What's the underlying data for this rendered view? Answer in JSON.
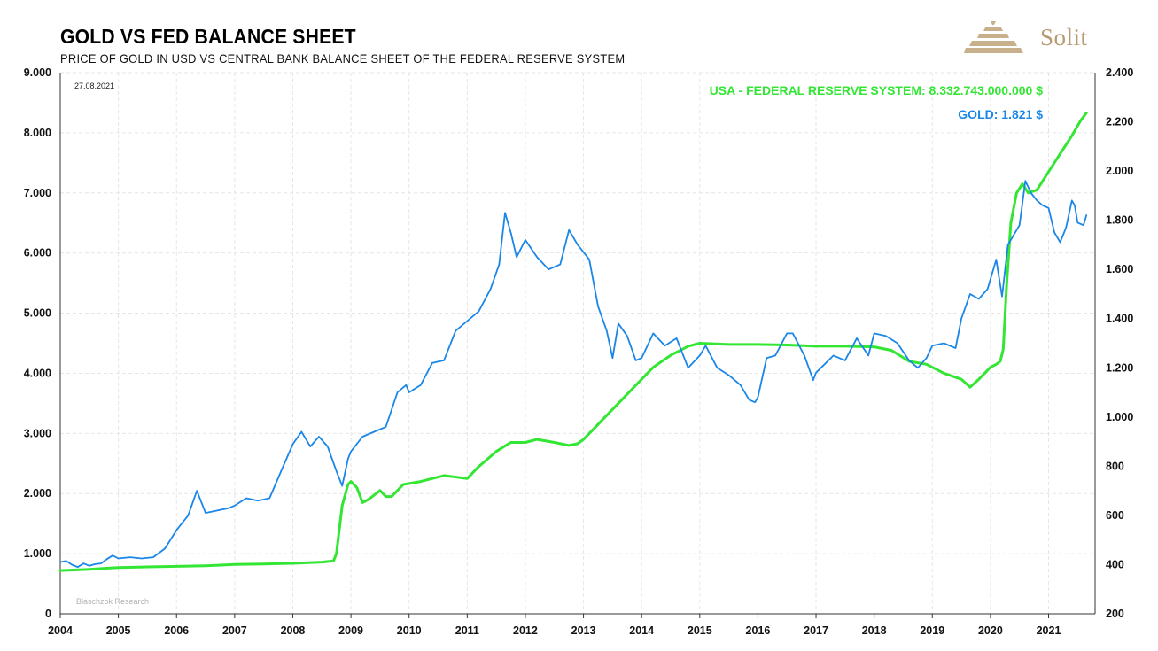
{
  "header": {
    "title": "GOLD VS FED BALANCE SHEET",
    "subtitle": "PRICE OF GOLD IN USD VS CENTRAL BANK BALANCE SHEET OF THE FEDERAL RESERVE SYSTEM",
    "logo_text": "Solit"
  },
  "chart_data": {
    "type": "line",
    "date_label": "27.08.2021",
    "credit": "Blaschzok Research",
    "x_range": [
      2004.0,
      2021.8
    ],
    "x_ticks": [
      "2004",
      "2005",
      "2006",
      "2007",
      "2008",
      "2009",
      "2010",
      "2011",
      "2012",
      "2013",
      "2014",
      "2015",
      "2016",
      "2017",
      "2018",
      "2019",
      "2020",
      "2021"
    ],
    "left_axis": {
      "series": "USA - FEDERAL RESERVE SYSTEM",
      "ylim": [
        0,
        9000
      ],
      "tick_labels": [
        "0",
        "1.000",
        "2.000",
        "3.000",
        "4.000",
        "5.000",
        "6.000",
        "7.000",
        "8.000",
        "9.000"
      ]
    },
    "right_axis": {
      "series": "GOLD",
      "ylim": [
        200,
        2400
      ],
      "tick_labels": [
        "200",
        "400",
        "600",
        "800",
        "1.000",
        "1.200",
        "1.400",
        "1.600",
        "1.800",
        "2.000",
        "2.200",
        "2.400"
      ]
    },
    "series": [
      {
        "name": "USA - FEDERAL RESERVE SYSTEM",
        "legend": "USA - FEDERAL RESERVE SYSTEM: 8.332.743.000.000 $",
        "axis": "left",
        "color": "#33e633",
        "unit": "billion USD",
        "points": [
          [
            2004.0,
            720
          ],
          [
            2004.5,
            740
          ],
          [
            2005.0,
            770
          ],
          [
            2005.5,
            780
          ],
          [
            2006.0,
            790
          ],
          [
            2006.5,
            800
          ],
          [
            2007.0,
            820
          ],
          [
            2007.5,
            830
          ],
          [
            2008.0,
            840
          ],
          [
            2008.5,
            860
          ],
          [
            2008.7,
            880
          ],
          [
            2008.75,
            1000
          ],
          [
            2008.85,
            1800
          ],
          [
            2008.95,
            2150
          ],
          [
            2009.0,
            2200
          ],
          [
            2009.1,
            2100
          ],
          [
            2009.2,
            1850
          ],
          [
            2009.3,
            1900
          ],
          [
            2009.5,
            2050
          ],
          [
            2009.6,
            1950
          ],
          [
            2009.7,
            1950
          ],
          [
            2009.9,
            2150
          ],
          [
            2010.2,
            2200
          ],
          [
            2010.6,
            2300
          ],
          [
            2011.0,
            2250
          ],
          [
            2011.2,
            2450
          ],
          [
            2011.5,
            2700
          ],
          [
            2011.75,
            2850
          ],
          [
            2012.0,
            2850
          ],
          [
            2012.2,
            2900
          ],
          [
            2012.5,
            2850
          ],
          [
            2012.75,
            2800
          ],
          [
            2012.9,
            2830
          ],
          [
            2013.0,
            2900
          ],
          [
            2013.3,
            3200
          ],
          [
            2013.6,
            3500
          ],
          [
            2013.9,
            3800
          ],
          [
            2014.2,
            4100
          ],
          [
            2014.5,
            4300
          ],
          [
            2014.8,
            4450
          ],
          [
            2015.0,
            4500
          ],
          [
            2015.5,
            4480
          ],
          [
            2016.0,
            4480
          ],
          [
            2016.5,
            4470
          ],
          [
            2017.0,
            4450
          ],
          [
            2017.5,
            4450
          ],
          [
            2018.0,
            4440
          ],
          [
            2018.3,
            4380
          ],
          [
            2018.6,
            4200
          ],
          [
            2018.9,
            4150
          ],
          [
            2019.2,
            4000
          ],
          [
            2019.5,
            3900
          ],
          [
            2019.65,
            3770
          ],
          [
            2019.8,
            3900
          ],
          [
            2020.0,
            4100
          ],
          [
            2020.1,
            4150
          ],
          [
            2020.17,
            4200
          ],
          [
            2020.22,
            4400
          ],
          [
            2020.28,
            5500
          ],
          [
            2020.35,
            6500
          ],
          [
            2020.45,
            7000
          ],
          [
            2020.55,
            7150
          ],
          [
            2020.65,
            7000
          ],
          [
            2020.8,
            7050
          ],
          [
            2021.0,
            7350
          ],
          [
            2021.2,
            7650
          ],
          [
            2021.4,
            7950
          ],
          [
            2021.55,
            8200
          ],
          [
            2021.65,
            8330
          ]
        ]
      },
      {
        "name": "GOLD",
        "legend": "GOLD: 1.821 $",
        "axis": "right",
        "color": "#1a86e8",
        "unit": "USD",
        "points": [
          [
            2004.0,
            410
          ],
          [
            2004.1,
            415
          ],
          [
            2004.2,
            400
          ],
          [
            2004.3,
            390
          ],
          [
            2004.4,
            405
          ],
          [
            2004.5,
            395
          ],
          [
            2004.6,
            402
          ],
          [
            2004.7,
            405
          ],
          [
            2004.8,
            422
          ],
          [
            2004.9,
            437
          ],
          [
            2005.0,
            425
          ],
          [
            2005.2,
            430
          ],
          [
            2005.4,
            425
          ],
          [
            2005.6,
            430
          ],
          [
            2005.8,
            465
          ],
          [
            2006.0,
            540
          ],
          [
            2006.2,
            600
          ],
          [
            2006.35,
            700
          ],
          [
            2006.5,
            610
          ],
          [
            2006.7,
            620
          ],
          [
            2006.9,
            630
          ],
          [
            2007.0,
            640
          ],
          [
            2007.2,
            670
          ],
          [
            2007.4,
            660
          ],
          [
            2007.6,
            670
          ],
          [
            2007.8,
            780
          ],
          [
            2008.0,
            890
          ],
          [
            2008.15,
            940
          ],
          [
            2008.3,
            880
          ],
          [
            2008.45,
            920
          ],
          [
            2008.6,
            880
          ],
          [
            2008.75,
            780
          ],
          [
            2008.85,
            720
          ],
          [
            2008.95,
            830
          ],
          [
            2009.0,
            860
          ],
          [
            2009.2,
            920
          ],
          [
            2009.4,
            940
          ],
          [
            2009.6,
            960
          ],
          [
            2009.8,
            1100
          ],
          [
            2009.95,
            1130
          ],
          [
            2010.0,
            1100
          ],
          [
            2010.2,
            1130
          ],
          [
            2010.4,
            1220
          ],
          [
            2010.6,
            1230
          ],
          [
            2010.8,
            1350
          ],
          [
            2011.0,
            1390
          ],
          [
            2011.2,
            1430
          ],
          [
            2011.4,
            1520
          ],
          [
            2011.55,
            1620
          ],
          [
            2011.65,
            1830
          ],
          [
            2011.75,
            1750
          ],
          [
            2011.85,
            1650
          ],
          [
            2012.0,
            1720
          ],
          [
            2012.2,
            1650
          ],
          [
            2012.4,
            1600
          ],
          [
            2012.6,
            1620
          ],
          [
            2012.75,
            1760
          ],
          [
            2012.9,
            1700
          ],
          [
            2013.0,
            1670
          ],
          [
            2013.1,
            1640
          ],
          [
            2013.25,
            1450
          ],
          [
            2013.4,
            1350
          ],
          [
            2013.5,
            1240
          ],
          [
            2013.6,
            1380
          ],
          [
            2013.75,
            1330
          ],
          [
            2013.9,
            1230
          ],
          [
            2014.0,
            1240
          ],
          [
            2014.2,
            1340
          ],
          [
            2014.4,
            1290
          ],
          [
            2014.6,
            1320
          ],
          [
            2014.8,
            1200
          ],
          [
            2015.0,
            1250
          ],
          [
            2015.1,
            1290
          ],
          [
            2015.3,
            1200
          ],
          [
            2015.5,
            1170
          ],
          [
            2015.7,
            1130
          ],
          [
            2015.85,
            1070
          ],
          [
            2015.95,
            1060
          ],
          [
            2016.0,
            1080
          ],
          [
            2016.15,
            1240
          ],
          [
            2016.3,
            1250
          ],
          [
            2016.5,
            1340
          ],
          [
            2016.6,
            1340
          ],
          [
            2016.8,
            1250
          ],
          [
            2016.95,
            1150
          ],
          [
            2017.0,
            1180
          ],
          [
            2017.3,
            1250
          ],
          [
            2017.5,
            1230
          ],
          [
            2017.7,
            1320
          ],
          [
            2017.9,
            1250
          ],
          [
            2018.0,
            1340
          ],
          [
            2018.2,
            1330
          ],
          [
            2018.4,
            1300
          ],
          [
            2018.6,
            1230
          ],
          [
            2018.75,
            1200
          ],
          [
            2018.9,
            1240
          ],
          [
            2019.0,
            1290
          ],
          [
            2019.2,
            1300
          ],
          [
            2019.4,
            1280
          ],
          [
            2019.5,
            1400
          ],
          [
            2019.65,
            1500
          ],
          [
            2019.8,
            1480
          ],
          [
            2019.95,
            1520
          ],
          [
            2020.0,
            1560
          ],
          [
            2020.1,
            1640
          ],
          [
            2020.2,
            1490
          ],
          [
            2020.3,
            1700
          ],
          [
            2020.5,
            1780
          ],
          [
            2020.6,
            1960
          ],
          [
            2020.7,
            1910
          ],
          [
            2020.8,
            1880
          ],
          [
            2020.9,
            1860
          ],
          [
            2021.0,
            1850
          ],
          [
            2021.1,
            1750
          ],
          [
            2021.2,
            1710
          ],
          [
            2021.3,
            1770
          ],
          [
            2021.4,
            1880
          ],
          [
            2021.45,
            1860
          ],
          [
            2021.5,
            1790
          ],
          [
            2021.6,
            1780
          ],
          [
            2021.65,
            1820
          ]
        ]
      }
    ]
  }
}
